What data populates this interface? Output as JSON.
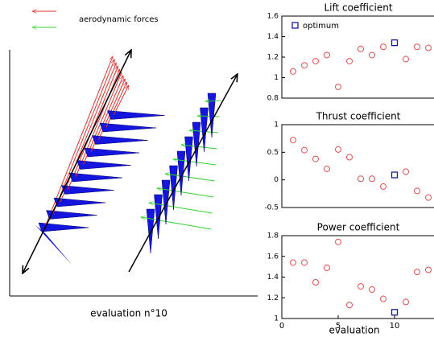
{
  "illustration": {
    "legend": "aerodynamic forces",
    "caption": "evaluation n°10"
  },
  "chart_data": [
    {
      "type": "scatter",
      "title": "Lift coefficient",
      "xlim": [
        0,
        13.5
      ],
      "ylim": [
        0.8,
        1.6
      ],
      "yticks": [
        0.8,
        1,
        1.2,
        1.4,
        1.6
      ],
      "legend": "top-left",
      "series": [
        {
          "color": "#e05050",
          "marker": "circle",
          "x": [
            1,
            2,
            3,
            4,
            5,
            6,
            7,
            8,
            9,
            11,
            12,
            13
          ],
          "values": [
            1.06,
            1.12,
            1.16,
            1.22,
            0.91,
            1.16,
            1.28,
            1.22,
            1.3,
            1.18,
            1.3,
            1.29
          ]
        },
        {
          "name": "optimum",
          "color": "#1a1aa0",
          "marker": "square",
          "x": [
            10
          ],
          "values": [
            1.34
          ]
        }
      ]
    },
    {
      "type": "scatter",
      "title": "Thrust coefficient",
      "xlim": [
        0,
        13.5
      ],
      "ylim": [
        -0.5,
        1
      ],
      "yticks": [
        -0.5,
        0,
        0.5,
        1
      ],
      "series": [
        {
          "color": "#e05050",
          "marker": "circle",
          "x": [
            1,
            2,
            3,
            4,
            5,
            6,
            7,
            8,
            9,
            11,
            12,
            13
          ],
          "values": [
            0.72,
            0.54,
            0.38,
            0.2,
            0.55,
            0.41,
            0.02,
            0.02,
            -0.12,
            0.15,
            -0.2,
            -0.32
          ]
        },
        {
          "color": "#1a1aa0",
          "marker": "square",
          "x": [
            10
          ],
          "values": [
            0.09
          ]
        }
      ]
    },
    {
      "type": "scatter",
      "title": "Power coefficient",
      "xlabel": "evaluation",
      "xlim": [
        0,
        13.5
      ],
      "xticks": [
        0,
        5,
        10
      ],
      "ylim": [
        1,
        1.8
      ],
      "yticks": [
        1,
        1.2,
        1.4,
        1.6,
        1.8
      ],
      "series": [
        {
          "color": "#e05050",
          "marker": "circle",
          "x": [
            1,
            2,
            3,
            4,
            5,
            6,
            7,
            8,
            9,
            11,
            12,
            13
          ],
          "values": [
            1.54,
            1.54,
            1.35,
            1.49,
            1.74,
            1.13,
            1.31,
            1.28,
            1.19,
            1.16,
            1.45,
            1.47
          ]
        },
        {
          "color": "#1a1aa0",
          "marker": "square",
          "x": [
            10
          ],
          "values": [
            1.06
          ]
        }
      ]
    }
  ]
}
